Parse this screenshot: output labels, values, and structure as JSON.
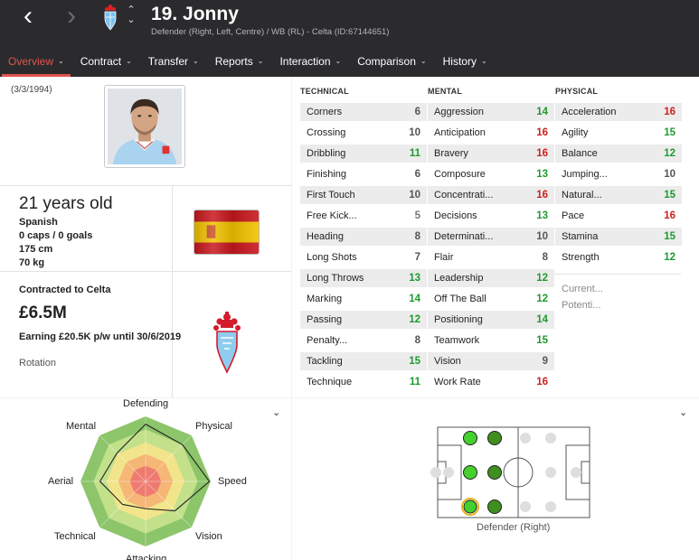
{
  "header": {
    "player_name": "19. Jonny",
    "player_sub": "Defender (Right, Left, Centre) / WB (RL) - Celta (ID:67144651)"
  },
  "tabs": [
    {
      "label": "Overview",
      "active": true
    },
    {
      "label": "Contract"
    },
    {
      "label": "Transfer"
    },
    {
      "label": "Reports"
    },
    {
      "label": "Interaction"
    },
    {
      "label": "Comparison"
    },
    {
      "label": "History"
    }
  ],
  "bio": {
    "dob": "(3/3/1994)",
    "age": "21 years old",
    "nationality": "Spanish",
    "caps": "0 caps / 0 goals",
    "height": "175 cm",
    "weight": "70 kg"
  },
  "contract": {
    "label": "Contracted to Celta",
    "value": "£6.5M",
    "earning": "Earning £20.5K p/w until 30/6/2019",
    "role": "Rotation"
  },
  "attributes": {
    "technical": {
      "title": "TECHNICAL",
      "items": [
        {
          "name": "Corners",
          "value": "6"
        },
        {
          "name": "Crossing",
          "value": "10"
        },
        {
          "name": "Dribbling",
          "value": "11"
        },
        {
          "name": "Finishing",
          "value": "6"
        },
        {
          "name": "First Touch",
          "value": "10"
        },
        {
          "name": "Free Kick...",
          "value": "5"
        },
        {
          "name": "Heading",
          "value": "8"
        },
        {
          "name": "Long Shots",
          "value": "7"
        },
        {
          "name": "Long Throws",
          "value": "13"
        },
        {
          "name": "Marking",
          "value": "14"
        },
        {
          "name": "Passing",
          "value": "12"
        },
        {
          "name": "Penalty...",
          "value": "8"
        },
        {
          "name": "Tackling",
          "value": "15"
        },
        {
          "name": "Technique",
          "value": "11"
        }
      ]
    },
    "mental": {
      "title": "MENTAL",
      "items": [
        {
          "name": "Aggression",
          "value": "14"
        },
        {
          "name": "Anticipation",
          "value": "16"
        },
        {
          "name": "Bravery",
          "value": "16"
        },
        {
          "name": "Composure",
          "value": "13"
        },
        {
          "name": "Concentrati...",
          "value": "16"
        },
        {
          "name": "Decisions",
          "value": "13"
        },
        {
          "name": "Determinati...",
          "value": "10"
        },
        {
          "name": "Flair",
          "value": "8"
        },
        {
          "name": "Leadership",
          "value": "12"
        },
        {
          "name": "Off The Ball",
          "value": "12"
        },
        {
          "name": "Positioning",
          "value": "14"
        },
        {
          "name": "Teamwork",
          "value": "15"
        },
        {
          "name": "Vision",
          "value": "9"
        },
        {
          "name": "Work Rate",
          "value": "16"
        }
      ]
    },
    "physical": {
      "title": "PHYSICAL",
      "items": [
        {
          "name": "Acceleration",
          "value": "16"
        },
        {
          "name": "Agility",
          "value": "15"
        },
        {
          "name": "Balance",
          "value": "12"
        },
        {
          "name": "Jumping...",
          "value": "10"
        },
        {
          "name": "Natural...",
          "value": "15"
        },
        {
          "name": "Pace",
          "value": "16"
        },
        {
          "name": "Stamina",
          "value": "15"
        },
        {
          "name": "Strength",
          "value": "12"
        }
      ]
    },
    "extra": {
      "current": "Current...",
      "potential": "Potenti..."
    }
  },
  "radar": {
    "labels": [
      "Defending",
      "Physical",
      "Speed",
      "Vision",
      "Attacking",
      "Technical",
      "Aerial",
      "Mental"
    ],
    "values": [
      0.88,
      0.8,
      0.98,
      0.64,
      0.42,
      0.5,
      0.7,
      0.62
    ]
  },
  "position": {
    "label": "Defender (Right)"
  },
  "colors": {
    "header_bg": "#2b2b2e",
    "accent": "#e0554d",
    "value_high": "#cc1f1f",
    "value_good": "#1f9a2f",
    "value_mid": "#555555",
    "value_low": "#777777"
  }
}
